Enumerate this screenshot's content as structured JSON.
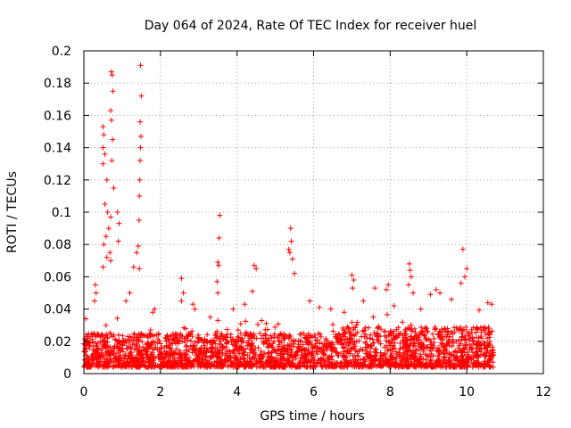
{
  "chart_data": {
    "type": "scatter",
    "title": "Day 064 of 2024, Rate Of TEC Index for receiver huel",
    "xlabel": "GPS time / hours",
    "ylabel": "ROTI / TECUs",
    "xlim": [
      0,
      12
    ],
    "ylim": [
      0,
      0.2
    ],
    "xticks": [
      0,
      2,
      4,
      6,
      8,
      10,
      12
    ],
    "xtick_labels": [
      "0",
      "2",
      "4",
      "6",
      "8",
      "10",
      "12"
    ],
    "yticks": [
      0,
      0.02,
      0.04,
      0.06,
      0.08,
      0.1,
      0.12,
      0.14,
      0.16,
      0.18,
      0.2
    ],
    "ytick_labels": [
      "0",
      "0.02",
      "0.04",
      "0.06",
      "0.08",
      "0.1",
      "0.12",
      "0.14",
      "0.16",
      "0.18",
      "0.2"
    ],
    "grid": true,
    "marker": "+",
    "color": "#ff0000",
    "data_extent_hours": [
      0,
      10.7
    ],
    "baseline_band": [
      0.004,
      0.025
    ],
    "notable_points": [
      {
        "x": 0.72,
        "y": 0.187
      },
      {
        "x": 0.74,
        "y": 0.185
      },
      {
        "x": 0.76,
        "y": 0.175
      },
      {
        "x": 0.7,
        "y": 0.163
      },
      {
        "x": 0.72,
        "y": 0.157
      },
      {
        "x": 0.5,
        "y": 0.153
      },
      {
        "x": 0.52,
        "y": 0.148
      },
      {
        "x": 0.75,
        "y": 0.145
      },
      {
        "x": 0.5,
        "y": 0.14
      },
      {
        "x": 0.55,
        "y": 0.136
      },
      {
        "x": 0.73,
        "y": 0.132
      },
      {
        "x": 0.5,
        "y": 0.13
      },
      {
        "x": 0.6,
        "y": 0.12
      },
      {
        "x": 0.78,
        "y": 0.115
      },
      {
        "x": 0.55,
        "y": 0.105
      },
      {
        "x": 0.62,
        "y": 0.1
      },
      {
        "x": 0.7,
        "y": 0.097
      },
      {
        "x": 0.88,
        "y": 0.1
      },
      {
        "x": 0.92,
        "y": 0.093
      },
      {
        "x": 0.65,
        "y": 0.09
      },
      {
        "x": 0.58,
        "y": 0.085
      },
      {
        "x": 0.52,
        "y": 0.08
      },
      {
        "x": 0.9,
        "y": 0.082
      },
      {
        "x": 0.68,
        "y": 0.075
      },
      {
        "x": 0.6,
        "y": 0.072
      },
      {
        "x": 0.7,
        "y": 0.07
      },
      {
        "x": 0.5,
        "y": 0.066
      },
      {
        "x": 1.48,
        "y": 0.191
      },
      {
        "x": 1.5,
        "y": 0.172
      },
      {
        "x": 1.47,
        "y": 0.156
      },
      {
        "x": 1.49,
        "y": 0.147
      },
      {
        "x": 1.48,
        "y": 0.14
      },
      {
        "x": 1.47,
        "y": 0.132
      },
      {
        "x": 1.46,
        "y": 0.12
      },
      {
        "x": 1.45,
        "y": 0.11
      },
      {
        "x": 1.44,
        "y": 0.095
      },
      {
        "x": 1.42,
        "y": 0.079
      },
      {
        "x": 1.38,
        "y": 0.075
      },
      {
        "x": 1.45,
        "y": 0.065
      },
      {
        "x": 1.3,
        "y": 0.066
      },
      {
        "x": 1.2,
        "y": 0.05
      },
      {
        "x": 1.1,
        "y": 0.045
      },
      {
        "x": 3.55,
        "y": 0.098
      },
      {
        "x": 3.53,
        "y": 0.084
      },
      {
        "x": 3.5,
        "y": 0.069
      },
      {
        "x": 3.52,
        "y": 0.067
      },
      {
        "x": 3.48,
        "y": 0.057
      },
      {
        "x": 3.5,
        "y": 0.05
      },
      {
        "x": 5.4,
        "y": 0.09
      },
      {
        "x": 5.42,
        "y": 0.082
      },
      {
        "x": 5.35,
        "y": 0.077
      },
      {
        "x": 5.38,
        "y": 0.075
      },
      {
        "x": 5.45,
        "y": 0.071
      },
      {
        "x": 5.5,
        "y": 0.062
      },
      {
        "x": 4.45,
        "y": 0.067
      },
      {
        "x": 4.5,
        "y": 0.065
      },
      {
        "x": 4.4,
        "y": 0.051
      },
      {
        "x": 2.55,
        "y": 0.059
      },
      {
        "x": 2.6,
        "y": 0.05
      },
      {
        "x": 2.55,
        "y": 0.045
      },
      {
        "x": 7.0,
        "y": 0.061
      },
      {
        "x": 7.05,
        "y": 0.058
      },
      {
        "x": 7.02,
        "y": 0.053
      },
      {
        "x": 8.5,
        "y": 0.068
      },
      {
        "x": 8.52,
        "y": 0.064
      },
      {
        "x": 8.55,
        "y": 0.06
      },
      {
        "x": 8.48,
        "y": 0.055
      },
      {
        "x": 8.6,
        "y": 0.05
      },
      {
        "x": 7.95,
        "y": 0.055
      },
      {
        "x": 7.9,
        "y": 0.052
      },
      {
        "x": 7.6,
        "y": 0.053
      },
      {
        "x": 9.9,
        "y": 0.077
      },
      {
        "x": 10.0,
        "y": 0.065
      },
      {
        "x": 9.95,
        "y": 0.06
      },
      {
        "x": 9.85,
        "y": 0.056
      },
      {
        "x": 9.2,
        "y": 0.052
      },
      {
        "x": 9.3,
        "y": 0.05
      },
      {
        "x": 9.05,
        "y": 0.049
      },
      {
        "x": 10.65,
        "y": 0.043
      },
      {
        "x": 10.55,
        "y": 0.044
      },
      {
        "x": 6.15,
        "y": 0.041
      },
      {
        "x": 6.8,
        "y": 0.038
      },
      {
        "x": 8.8,
        "y": 0.04
      },
      {
        "x": 9.6,
        "y": 0.046
      },
      {
        "x": 0.3,
        "y": 0.055
      },
      {
        "x": 0.32,
        "y": 0.05
      },
      {
        "x": 0.28,
        "y": 0.045
      },
      {
        "x": 0.05,
        "y": 0.034
      },
      {
        "x": 1.85,
        "y": 0.04
      },
      {
        "x": 1.8,
        "y": 0.038
      },
      {
        "x": 2.85,
        "y": 0.043
      },
      {
        "x": 2.9,
        "y": 0.04
      },
      {
        "x": 3.3,
        "y": 0.035
      },
      {
        "x": 3.9,
        "y": 0.04
      },
      {
        "x": 4.2,
        "y": 0.043
      },
      {
        "x": 5.9,
        "y": 0.045
      },
      {
        "x": 6.45,
        "y": 0.04
      },
      {
        "x": 7.3,
        "y": 0.045
      },
      {
        "x": 8.1,
        "y": 0.042
      }
    ]
  }
}
